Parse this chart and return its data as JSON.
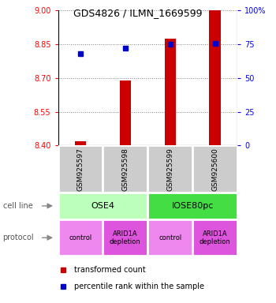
{
  "title": "GDS4826 / ILMN_1669599",
  "samples": [
    "GSM925597",
    "GSM925598",
    "GSM925599",
    "GSM925600"
  ],
  "transformed_counts": [
    8.42,
    8.69,
    8.875,
    9.0
  ],
  "percentile_ranks": [
    68,
    72,
    75,
    75.5
  ],
  "ylim_left": [
    8.4,
    9.0
  ],
  "ylim_right": [
    0,
    100
  ],
  "yticks_left": [
    8.4,
    8.55,
    8.7,
    8.85,
    9.0
  ],
  "yticks_right": [
    0,
    25,
    50,
    75,
    100
  ],
  "ytick_labels_right": [
    "0",
    "25",
    "50",
    "75",
    "100%"
  ],
  "bar_color": "#cc0000",
  "dot_color": "#0000cc",
  "cell_lines": [
    "OSE4",
    "IOSE80pc"
  ],
  "cell_line_spans": [
    [
      0,
      1
    ],
    [
      2,
      3
    ]
  ],
  "cell_line_colors": [
    "#bbffbb",
    "#44dd44"
  ],
  "protocols": [
    "control",
    "ARID1A\ndepletion",
    "control",
    "ARID1A\ndepletion"
  ],
  "protocol_colors": [
    "#ee88ee",
    "#dd55dd",
    "#ee88ee",
    "#dd55dd"
  ],
  "gsm_bg_color": "#cccccc",
  "legend_bar_label": "transformed count",
  "legend_dot_label": "percentile rank within the sample",
  "cell_line_label": "cell line",
  "protocol_label": "protocol",
  "bar_width": 0.25
}
